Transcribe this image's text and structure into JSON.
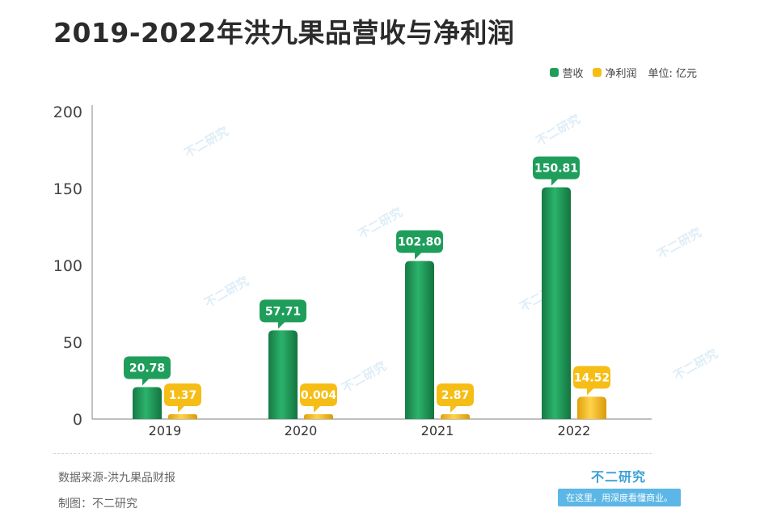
{
  "chart_data": {
    "type": "bar",
    "title": "2019-2022年洪九果品营收与净利润",
    "categories": [
      "2019",
      "2020",
      "2021",
      "2022"
    ],
    "series": [
      {
        "name": "营收",
        "values": [
          20.78,
          57.71,
          102.8,
          150.81
        ],
        "labels": [
          "20.78",
          "57.71",
          "102.80",
          "150.81"
        ],
        "color": "#1f9e5b"
      },
      {
        "name": "净利润",
        "values": [
          1.37,
          0.004,
          2.87,
          14.52
        ],
        "labels": [
          "1.37",
          "0.004",
          "2.87",
          "14.52"
        ],
        "color": "#f5bd16"
      }
    ],
    "unit": "单位: 亿元",
    "ylim": [
      0,
      200
    ],
    "yticks": [
      0,
      50,
      100,
      150,
      200
    ],
    "grid": false,
    "legend": "top-right"
  },
  "footer": {
    "source": "数据来源-洪九果品财报",
    "maker": "制图：不二研究"
  },
  "brand": {
    "name": "不二研究",
    "slogan": "在这里，用深度看懂商业。"
  },
  "watermark": "不二研究"
}
